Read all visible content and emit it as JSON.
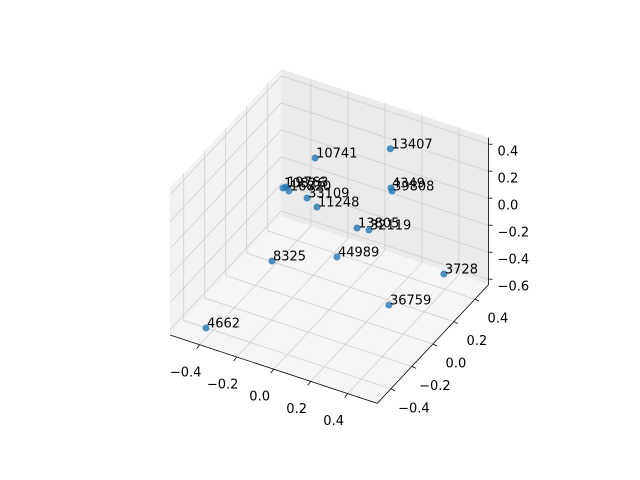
{
  "chart_data": {
    "type": "scatter3d",
    "xlim": [
      -0.56,
      0.56
    ],
    "ylim": [
      -0.53,
      0.53
    ],
    "zlim": [
      -0.64,
      0.45
    ],
    "xticks": [
      {
        "value": -0.4,
        "label": "−0.4"
      },
      {
        "value": -0.2,
        "label": "−0.2"
      },
      {
        "value": 0,
        "label": "0.0"
      },
      {
        "value": 0.2,
        "label": "0.2"
      },
      {
        "value": 0.4,
        "label": "0.4"
      }
    ],
    "yticks": [
      {
        "value": -0.4,
        "label": "−0.4"
      },
      {
        "value": -0.2,
        "label": "−0.2"
      },
      {
        "value": 0,
        "label": "0.0"
      },
      {
        "value": 0.2,
        "label": "0.2"
      },
      {
        "value": 0.4,
        "label": "0.4"
      }
    ],
    "zticks": [
      {
        "value": -0.6,
        "label": "−0.6"
      },
      {
        "value": -0.4,
        "label": "−0.4"
      },
      {
        "value": -0.2,
        "label": "−0.2"
      },
      {
        "value": 0,
        "label": "0.0"
      },
      {
        "value": 0.2,
        "label": "0.2"
      },
      {
        "value": 0.4,
        "label": "0.4"
      }
    ],
    "grid": true,
    "series": [
      {
        "color": "#1f77b4",
        "labels": [
          "13407",
          "10741",
          "4349",
          "39808",
          "10826",
          "19763",
          "16820",
          "33109",
          "11248",
          "13805",
          "32119",
          "8325",
          "44989",
          "3728",
          "36759",
          "4662"
        ],
        "x": [
          0.12,
          -0.155,
          0.17,
          0.186,
          -0.276,
          -0.267,
          -0.24,
          -0.19,
          -0.114,
          0.028,
          0.085,
          -0.248,
          0.005,
          0.46,
          0.301,
          -0.418
        ],
        "y": [
          0.37,
          0.138,
          0.288,
          0.27,
          0.045,
          0.059,
          0.038,
          0.123,
          0.084,
          0.215,
          0.228,
          -0.109,
          0.064,
          0.281,
          0.038,
          -0.438
        ],
        "z": [
          0.3,
          0.3,
          0.1,
          0.1,
          0.1,
          0.1,
          0.1,
          0,
          0,
          -0.2,
          -0.2,
          -0.3,
          -0.3,
          -0.4,
          -0.5,
          -0.6
        ]
      }
    ]
  }
}
